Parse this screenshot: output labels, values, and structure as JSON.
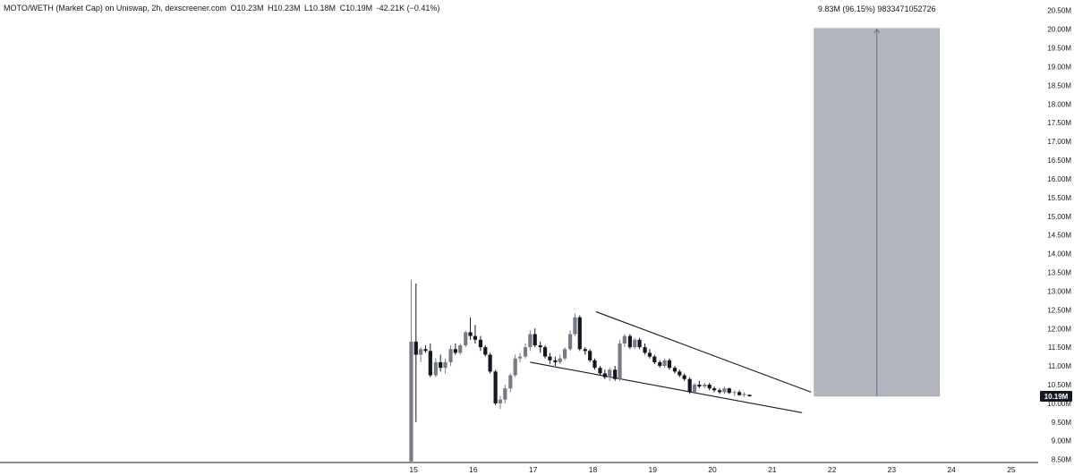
{
  "header": {
    "title": "MOTO/WETH (Market Cap) on Uniswap, 2h, dexscreener.com",
    "open": "O10.23M",
    "high": "H10.23M",
    "low": "L10.18M",
    "close": "C10.19M",
    "change": "-42.21K (−0.41%)"
  },
  "measure": {
    "label": "9.83M (96.15%) 9833471052726",
    "from": 10.19,
    "to": 20.02,
    "x_start": 21.7,
    "x_end": 23.8,
    "color": "#b2b5be"
  },
  "last_price": {
    "label": "10.19M",
    "value": 10.19,
    "color": "#131722"
  },
  "colors": {
    "up": "#787b86",
    "down": "#131722",
    "line": "#131722"
  },
  "chart_data": {
    "type": "candlestick",
    "xlim": [
      8.08,
      25.45
    ],
    "ylim": [
      8.42,
      20.78
    ],
    "x_ticks": [
      {
        "v": 15,
        "label": "15"
      },
      {
        "v": 16,
        "label": "16"
      },
      {
        "v": 17,
        "label": "17"
      },
      {
        "v": 18,
        "label": "18"
      },
      {
        "v": 19,
        "label": "19"
      },
      {
        "v": 20,
        "label": "20"
      },
      {
        "v": 21,
        "label": "21"
      },
      {
        "v": 22,
        "label": "22"
      },
      {
        "v": 23,
        "label": "23"
      },
      {
        "v": 24,
        "label": "24"
      },
      {
        "v": 25,
        "label": "25"
      }
    ],
    "y_ticks": [
      {
        "v": 8.5,
        "label": "8.50M"
      },
      {
        "v": 9.0,
        "label": "9.00M"
      },
      {
        "v": 9.5,
        "label": "9.50M"
      },
      {
        "v": 10.0,
        "label": "10.00M"
      },
      {
        "v": 10.5,
        "label": "10.50M"
      },
      {
        "v": 11.0,
        "label": "11.00M"
      },
      {
        "v": 11.5,
        "label": "11.50M"
      },
      {
        "v": 12.0,
        "label": "12.00M"
      },
      {
        "v": 12.5,
        "label": "12.50M"
      },
      {
        "v": 13.0,
        "label": "13.00M"
      },
      {
        "v": 13.5,
        "label": "13.50M"
      },
      {
        "v": 14.0,
        "label": "14.00M"
      },
      {
        "v": 14.5,
        "label": "14.50M"
      },
      {
        "v": 15.0,
        "label": "15.00M"
      },
      {
        "v": 15.5,
        "label": "15.50M"
      },
      {
        "v": 16.0,
        "label": "16.00M"
      },
      {
        "v": 16.5,
        "label": "16.50M"
      },
      {
        "v": 17.0,
        "label": "17.00M"
      },
      {
        "v": 17.5,
        "label": "17.50M"
      },
      {
        "v": 18.0,
        "label": "18.00M"
      },
      {
        "v": 18.5,
        "label": "18.50M"
      },
      {
        "v": 19.0,
        "label": "19.00M"
      },
      {
        "v": 19.5,
        "label": "19.50M"
      },
      {
        "v": 20.0,
        "label": "20.00M"
      },
      {
        "v": 20.5,
        "label": "20.50M"
      }
    ],
    "candles": [
      {
        "t": 14.96,
        "o": 8.45,
        "h": 13.3,
        "l": 8.45,
        "c": 11.65
      },
      {
        "t": 15.04,
        "o": 11.65,
        "h": 13.2,
        "l": 9.5,
        "c": 11.3
      },
      {
        "t": 15.12,
        "o": 11.3,
        "h": 11.5,
        "l": 11.1,
        "c": 11.45
      },
      {
        "t": 15.2,
        "o": 11.45,
        "h": 11.55,
        "l": 11.35,
        "c": 11.4
      },
      {
        "t": 15.28,
        "o": 11.4,
        "h": 11.6,
        "l": 10.7,
        "c": 10.75
      },
      {
        "t": 15.37,
        "o": 10.75,
        "h": 11.2,
        "l": 10.7,
        "c": 11.1
      },
      {
        "t": 15.45,
        "o": 11.1,
        "h": 11.3,
        "l": 10.85,
        "c": 10.95
      },
      {
        "t": 15.53,
        "o": 10.95,
        "h": 11.2,
        "l": 10.8,
        "c": 11.1
      },
      {
        "t": 15.62,
        "o": 11.1,
        "h": 11.55,
        "l": 11.0,
        "c": 11.45
      },
      {
        "t": 15.7,
        "o": 11.45,
        "h": 11.6,
        "l": 11.3,
        "c": 11.35
      },
      {
        "t": 15.78,
        "o": 11.35,
        "h": 11.6,
        "l": 11.3,
        "c": 11.55
      },
      {
        "t": 15.87,
        "o": 11.55,
        "h": 11.95,
        "l": 11.5,
        "c": 11.9
      },
      {
        "t": 15.95,
        "o": 11.9,
        "h": 12.3,
        "l": 11.7,
        "c": 11.8
      },
      {
        "t": 16.03,
        "o": 11.8,
        "h": 12.1,
        "l": 11.6,
        "c": 11.7
      },
      {
        "t": 16.12,
        "o": 11.7,
        "h": 11.8,
        "l": 11.4,
        "c": 11.5
      },
      {
        "t": 16.2,
        "o": 11.5,
        "h": 11.55,
        "l": 11.25,
        "c": 11.3
      },
      {
        "t": 16.28,
        "o": 11.3,
        "h": 11.35,
        "l": 10.8,
        "c": 10.85
      },
      {
        "t": 16.37,
        "o": 10.85,
        "h": 10.9,
        "l": 9.95,
        "c": 10.0
      },
      {
        "t": 16.45,
        "o": 10.0,
        "h": 10.2,
        "l": 9.85,
        "c": 10.1
      },
      {
        "t": 16.53,
        "o": 10.1,
        "h": 10.5,
        "l": 10.0,
        "c": 10.4
      },
      {
        "t": 16.62,
        "o": 10.4,
        "h": 10.8,
        "l": 10.3,
        "c": 10.75
      },
      {
        "t": 16.7,
        "o": 10.75,
        "h": 11.3,
        "l": 10.7,
        "c": 11.2
      },
      {
        "t": 16.78,
        "o": 11.2,
        "h": 11.35,
        "l": 11.1,
        "c": 11.25
      },
      {
        "t": 16.87,
        "o": 11.25,
        "h": 11.6,
        "l": 11.2,
        "c": 11.5
      },
      {
        "t": 16.95,
        "o": 11.5,
        "h": 11.95,
        "l": 11.4,
        "c": 11.85
      },
      {
        "t": 17.03,
        "o": 11.85,
        "h": 12.0,
        "l": 11.5,
        "c": 11.55
      },
      {
        "t": 17.12,
        "o": 11.55,
        "h": 11.65,
        "l": 11.35,
        "c": 11.5
      },
      {
        "t": 17.2,
        "o": 11.5,
        "h": 11.55,
        "l": 11.2,
        "c": 11.25
      },
      {
        "t": 17.28,
        "o": 11.25,
        "h": 11.35,
        "l": 11.05,
        "c": 11.15
      },
      {
        "t": 17.37,
        "o": 11.15,
        "h": 11.25,
        "l": 11.0,
        "c": 11.1
      },
      {
        "t": 17.45,
        "o": 11.1,
        "h": 11.3,
        "l": 11.05,
        "c": 11.2
      },
      {
        "t": 17.53,
        "o": 11.2,
        "h": 11.5,
        "l": 11.15,
        "c": 11.45
      },
      {
        "t": 17.62,
        "o": 11.45,
        "h": 11.95,
        "l": 11.4,
        "c": 11.85
      },
      {
        "t": 17.7,
        "o": 11.85,
        "h": 12.4,
        "l": 11.8,
        "c": 12.3
      },
      {
        "t": 17.78,
        "o": 12.3,
        "h": 12.35,
        "l": 11.4,
        "c": 11.45
      },
      {
        "t": 17.87,
        "o": 11.45,
        "h": 11.5,
        "l": 11.3,
        "c": 11.4
      },
      {
        "t": 17.95,
        "o": 11.4,
        "h": 11.45,
        "l": 11.1,
        "c": 11.15
      },
      {
        "t": 18.03,
        "o": 11.15,
        "h": 11.2,
        "l": 10.9,
        "c": 10.95
      },
      {
        "t": 18.12,
        "o": 10.95,
        "h": 11.0,
        "l": 10.75,
        "c": 10.8
      },
      {
        "t": 18.2,
        "o": 10.8,
        "h": 10.9,
        "l": 10.65,
        "c": 10.7
      },
      {
        "t": 18.28,
        "o": 10.7,
        "h": 10.95,
        "l": 10.6,
        "c": 10.9
      },
      {
        "t": 18.37,
        "o": 10.9,
        "h": 11.0,
        "l": 10.6,
        "c": 10.65
      },
      {
        "t": 18.45,
        "o": 10.65,
        "h": 11.7,
        "l": 10.6,
        "c": 11.6
      },
      {
        "t": 18.53,
        "o": 11.6,
        "h": 11.85,
        "l": 11.5,
        "c": 11.8
      },
      {
        "t": 18.62,
        "o": 11.8,
        "h": 11.85,
        "l": 11.45,
        "c": 11.5
      },
      {
        "t": 18.7,
        "o": 11.5,
        "h": 11.75,
        "l": 11.45,
        "c": 11.7
      },
      {
        "t": 18.78,
        "o": 11.7,
        "h": 11.75,
        "l": 11.45,
        "c": 11.5
      },
      {
        "t": 18.87,
        "o": 11.5,
        "h": 11.6,
        "l": 11.3,
        "c": 11.35
      },
      {
        "t": 18.95,
        "o": 11.35,
        "h": 11.45,
        "l": 11.2,
        "c": 11.25
      },
      {
        "t": 19.03,
        "o": 11.25,
        "h": 11.3,
        "l": 11.05,
        "c": 11.1
      },
      {
        "t": 19.12,
        "o": 11.1,
        "h": 11.15,
        "l": 10.95,
        "c": 11.0
      },
      {
        "t": 19.2,
        "o": 11.0,
        "h": 11.2,
        "l": 10.95,
        "c": 11.15
      },
      {
        "t": 19.28,
        "o": 11.15,
        "h": 11.2,
        "l": 10.9,
        "c": 10.95
      },
      {
        "t": 19.37,
        "o": 10.95,
        "h": 11.0,
        "l": 10.8,
        "c": 10.85
      },
      {
        "t": 19.45,
        "o": 10.85,
        "h": 10.9,
        "l": 10.7,
        "c": 10.75
      },
      {
        "t": 19.53,
        "o": 10.75,
        "h": 10.8,
        "l": 10.6,
        "c": 10.65
      },
      {
        "t": 19.62,
        "o": 10.65,
        "h": 10.7,
        "l": 10.25,
        "c": 10.3
      },
      {
        "t": 19.7,
        "o": 10.3,
        "h": 10.55,
        "l": 10.25,
        "c": 10.5
      },
      {
        "t": 19.78,
        "o": 10.5,
        "h": 10.6,
        "l": 10.4,
        "c": 10.45
      },
      {
        "t": 19.87,
        "o": 10.45,
        "h": 10.55,
        "l": 10.4,
        "c": 10.5
      },
      {
        "t": 19.95,
        "o": 10.5,
        "h": 10.55,
        "l": 10.35,
        "c": 10.4
      },
      {
        "t": 20.03,
        "o": 10.4,
        "h": 10.45,
        "l": 10.3,
        "c": 10.35
      },
      {
        "t": 20.12,
        "o": 10.35,
        "h": 10.4,
        "l": 10.25,
        "c": 10.3
      },
      {
        "t": 20.2,
        "o": 10.3,
        "h": 10.45,
        "l": 10.25,
        "c": 10.4
      },
      {
        "t": 20.28,
        "o": 10.4,
        "h": 10.42,
        "l": 10.25,
        "c": 10.28
      },
      {
        "t": 20.37,
        "o": 10.28,
        "h": 10.35,
        "l": 10.2,
        "c": 10.3
      },
      {
        "t": 20.45,
        "o": 10.3,
        "h": 10.35,
        "l": 10.2,
        "c": 10.22
      },
      {
        "t": 20.53,
        "o": 10.22,
        "h": 10.3,
        "l": 10.17,
        "c": 10.25
      },
      {
        "t": 20.62,
        "o": 10.23,
        "h": 10.23,
        "l": 10.18,
        "c": 10.19
      }
    ],
    "lines": [
      {
        "x1": 18.05,
        "y1": 12.45,
        "x2": 21.65,
        "y2": 10.3
      },
      {
        "x1": 16.95,
        "y1": 11.1,
        "x2": 21.5,
        "y2": 9.75
      }
    ]
  }
}
